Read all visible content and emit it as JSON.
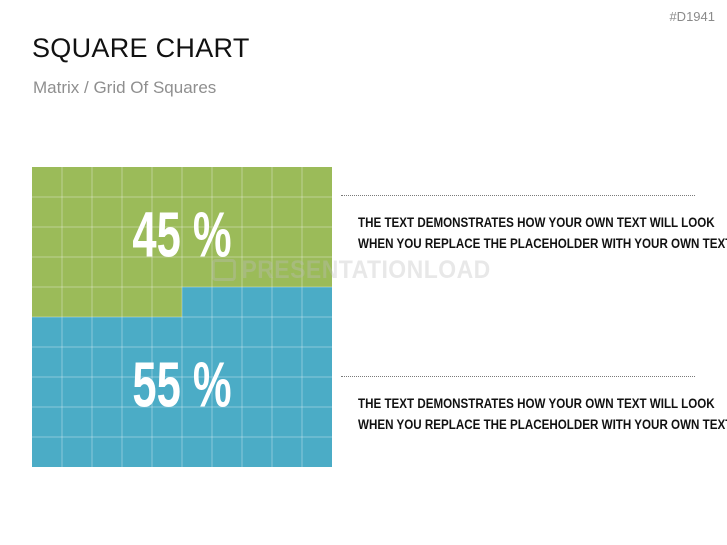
{
  "header": {
    "slide_id": "#D1941",
    "title": "SQUARE CHART",
    "subtitle": "Matrix / Grid Of Squares"
  },
  "watermark": "PRESENTATIONLOAD",
  "descriptions": [
    {
      "line1": "THE TEXT DEMONSTRATES HOW YOUR OWN TEXT WILL LOOK",
      "line2": "WHEN YOU REPLACE THE PLACEHOLDER WITH YOUR OWN TEXT."
    },
    {
      "line1": "THE TEXT DEMONSTRATES HOW YOUR OWN TEXT WILL LOOK",
      "line2": "WHEN YOU REPLACE THE PLACEHOLDER WITH YOUR OWN TEXT."
    }
  ],
  "chart_data": {
    "type": "waffle",
    "grid": [
      10,
      10
    ],
    "total_cells": 100,
    "series": [
      {
        "value": 45,
        "label": "45 %",
        "color": "#9bbb59"
      },
      {
        "value": 55,
        "label": "55 %",
        "color": "#4bacc6"
      }
    ],
    "grid_line_color": "#ffffff"
  }
}
